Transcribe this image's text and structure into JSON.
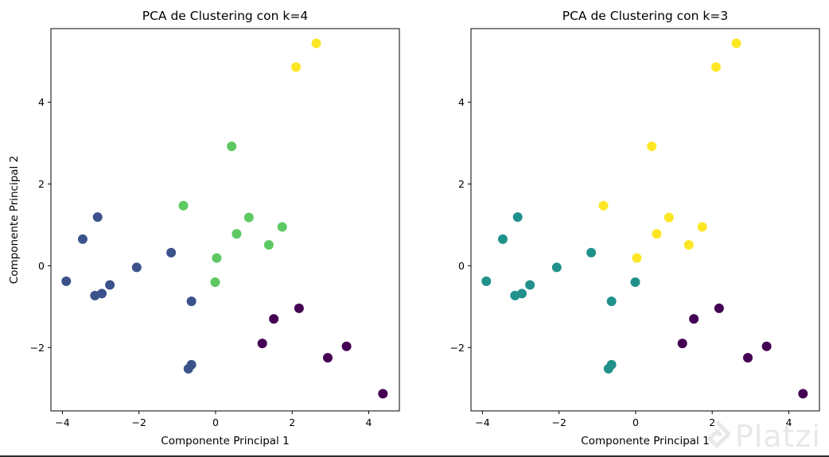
{
  "chart_data": [
    {
      "type": "scatter",
      "title": "PCA de Clustering con k=4",
      "xlabel": "Componente Principal 1",
      "ylabel": "Componente Principal 2",
      "xlim": [
        -4.3,
        4.8
      ],
      "ylim": [
        -3.55,
        5.8
      ],
      "xticks": [
        -4,
        -2,
        0,
        2,
        4
      ],
      "yticks": [
        -2,
        0,
        2,
        4
      ],
      "grid": false,
      "series": [
        {
          "color": "#440154",
          "points": [
            [
              1.52,
              -1.3
            ],
            [
              2.18,
              -1.04
            ],
            [
              1.22,
              -1.9
            ],
            [
              2.93,
              -2.25
            ],
            [
              3.42,
              -1.97
            ],
            [
              4.37,
              -3.13
            ]
          ]
        },
        {
          "color": "#3b528b",
          "points": [
            [
              -3.9,
              -0.38
            ],
            [
              -3.47,
              0.65
            ],
            [
              -3.08,
              1.19
            ],
            [
              -3.15,
              -0.73
            ],
            [
              -2.97,
              -0.68
            ],
            [
              -2.76,
              -0.47
            ],
            [
              -2.06,
              -0.04
            ],
            [
              -1.16,
              0.32
            ],
            [
              -0.63,
              -0.87
            ],
            [
              -0.71,
              -2.52
            ],
            [
              -0.63,
              -2.42
            ]
          ]
        },
        {
          "color": "#5ec962",
          "points": [
            [
              0.42,
              2.92
            ],
            [
              -0.84,
              1.47
            ],
            [
              0.87,
              1.18
            ],
            [
              1.74,
              0.95
            ],
            [
              0.55,
              0.78
            ],
            [
              1.39,
              0.51
            ],
            [
              0.03,
              0.19
            ],
            [
              -0.01,
              -0.4
            ]
          ]
        },
        {
          "color": "#fde725",
          "points": [
            [
              2.1,
              4.86
            ],
            [
              2.63,
              5.44
            ]
          ]
        }
      ]
    },
    {
      "type": "scatter",
      "title": "PCA de Clustering con k=3",
      "xlabel": "Componente Principal 1",
      "ylabel": "",
      "xlim": [
        -4.3,
        4.8
      ],
      "ylim": [
        -3.55,
        5.8
      ],
      "xticks": [
        -4,
        -2,
        0,
        2,
        4
      ],
      "yticks": [
        -2,
        0,
        2,
        4
      ],
      "grid": false,
      "series": [
        {
          "color": "#440154",
          "points": [
            [
              1.52,
              -1.3
            ],
            [
              2.18,
              -1.04
            ],
            [
              1.22,
              -1.9
            ],
            [
              2.93,
              -2.25
            ],
            [
              3.42,
              -1.97
            ],
            [
              4.37,
              -3.13
            ]
          ]
        },
        {
          "color": "#21918c",
          "points": [
            [
              -3.9,
              -0.38
            ],
            [
              -3.47,
              0.65
            ],
            [
              -3.08,
              1.19
            ],
            [
              -3.15,
              -0.73
            ],
            [
              -2.97,
              -0.68
            ],
            [
              -2.76,
              -0.47
            ],
            [
              -2.06,
              -0.04
            ],
            [
              -1.16,
              0.32
            ],
            [
              -0.01,
              -0.4
            ],
            [
              -0.63,
              -0.87
            ],
            [
              -0.71,
              -2.52
            ],
            [
              -0.63,
              -2.42
            ]
          ]
        },
        {
          "color": "#fde725",
          "points": [
            [
              2.1,
              4.86
            ],
            [
              2.63,
              5.44
            ],
            [
              0.42,
              2.92
            ],
            [
              -0.84,
              1.47
            ],
            [
              0.87,
              1.18
            ],
            [
              1.74,
              0.95
            ],
            [
              0.55,
              0.78
            ],
            [
              1.39,
              0.51
            ],
            [
              0.03,
              0.19
            ]
          ]
        }
      ]
    }
  ],
  "watermark": {
    "text": "Platzi"
  }
}
